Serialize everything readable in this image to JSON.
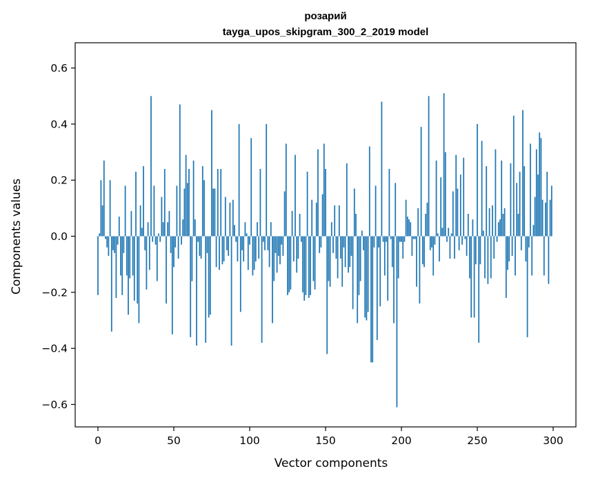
{
  "chart_data": {
    "type": "bar",
    "title_line1": "розарий",
    "title_line2": "tayga_upos_skipgram_300_2_2019 model",
    "xlabel": "Vector components",
    "ylabel": "Components values",
    "xlim": [
      -15,
      315
    ],
    "ylim": [
      -0.68,
      0.69
    ],
    "xticks": [
      0,
      50,
      100,
      150,
      200,
      250,
      300
    ],
    "yticks": [
      -0.6,
      -0.4,
      -0.2,
      0.0,
      0.2,
      0.4,
      0.6
    ],
    "xtick_labels": [
      "0",
      "50",
      "100",
      "150",
      "200",
      "250",
      "300"
    ],
    "ytick_labels": [
      "−0.6",
      "−0.4",
      "−0.2",
      "0.0",
      "0.2",
      "0.4",
      "0.6"
    ],
    "bar_color": "#1f77b4",
    "grid": false,
    "values": [
      -0.21,
      0.01,
      0.2,
      0.11,
      0.27,
      -0.01,
      -0.04,
      -0.07,
      0.2,
      -0.34,
      -0.05,
      -0.06,
      -0.22,
      -0.03,
      0.07,
      -0.14,
      -0.21,
      -0.06,
      0.18,
      -0.14,
      -0.28,
      -0.15,
      0.09,
      -0.14,
      -0.23,
      0.23,
      -0.24,
      -0.31,
      0.11,
      0.03,
      0.25,
      -0.05,
      -0.19,
      0.05,
      -0.12,
      0.5,
      -0.02,
      0.18,
      -0.03,
      -0.16,
      0.01,
      -0.02,
      0.14,
      0.05,
      0.24,
      -0.24,
      0.05,
      0.09,
      -0.06,
      -0.35,
      -0.11,
      -0.04,
      0.18,
      -0.08,
      0.47,
      -0.03,
      0.06,
      0.17,
      0.29,
      0.19,
      0.24,
      -0.36,
      -0.16,
      0.27,
      0.06,
      -0.39,
      -0.02,
      -0.07,
      -0.08,
      0.25,
      0.2,
      -0.38,
      -0.06,
      -0.29,
      -0.28,
      0.45,
      0.17,
      0.17,
      -0.11,
      0.24,
      -0.12,
      0.24,
      -0.1,
      -0.09,
      0.14,
      -0.05,
      -0.07,
      0.12,
      -0.39,
      0.13,
      0.04,
      -0.02,
      -0.09,
      0.4,
      -0.27,
      -0.05,
      -0.09,
      0.05,
      0.01,
      -0.12,
      -0.03,
      0.35,
      -0.14,
      -0.12,
      -0.09,
      0.05,
      -0.08,
      0.24,
      -0.38,
      -0.02,
      -0.05,
      0.4,
      -0.05,
      -0.11,
      0.05,
      -0.31,
      -0.16,
      -0.06,
      -0.13,
      -0.07,
      -0.1,
      -0.03,
      -0.07,
      0.16,
      0.33,
      -0.21,
      -0.2,
      -0.19,
      0.09,
      -0.09,
      0.29,
      -0.13,
      -0.08,
      0.08,
      -0.02,
      -0.2,
      -0.23,
      -0.21,
      0.23,
      -0.22,
      -0.21,
      0.13,
      -0.16,
      -0.19,
      0.12,
      0.31,
      -0.06,
      -0.04,
      0.15,
      0.33,
      0.24,
      -0.42,
      -0.16,
      -0.18,
      0.05,
      -0.06,
      0.11,
      -0.08,
      -0.15,
      0.11,
      -0.08,
      -0.18,
      -0.04,
      -0.11,
      0.26,
      -0.13,
      -0.11,
      -0.07,
      -0.26,
      0.17,
      0.08,
      -0.31,
      -0.21,
      -0.16,
      0.02,
      -0.05,
      -0.29,
      -0.3,
      -0.27,
      0.32,
      -0.45,
      -0.45,
      -0.04,
      0.18,
      -0.37,
      -0.04,
      -0.25,
      0.48,
      -0.02,
      -0.14,
      -0.02,
      -0.23,
      0.24,
      -0.01,
      -0.11,
      -0.31,
      0.19,
      -0.61,
      -0.15,
      -0.02,
      -0.02,
      -0.08,
      -0.02,
      0.13,
      0.07,
      0.06,
      0.05,
      -0.07,
      -0.01,
      -0.01,
      -0.18,
      0.1,
      -0.24,
      0.39,
      -0.1,
      -0.11,
      0.08,
      0.12,
      0.5,
      -0.05,
      -0.04,
      -0.14,
      -0.03,
      0.27,
      0.01,
      -0.09,
      0.21,
      0.03,
      0.51,
      0.3,
      -0.02,
      0.03,
      -0.08,
      0.01,
      0.16,
      -0.08,
      0.29,
      0.17,
      -0.05,
      0.22,
      -0.03,
      0.28,
      -0.01,
      -0.07,
      0.08,
      -0.15,
      -0.29,
      0.06,
      -0.29,
      -0.1,
      0.4,
      -0.38,
      -0.1,
      0.34,
      0.02,
      -0.15,
      0.25,
      -0.17,
      0.1,
      -0.15,
      0.11,
      -0.08,
      0.31,
      -0.02,
      0.05,
      0.06,
      0.27,
      0.08,
      0.1,
      -0.22,
      -0.12,
      -0.09,
      0.26,
      -0.07,
      0.43,
      -0.14,
      0.19,
      0.08,
      0.23,
      -0.05,
      0.45,
      0.25,
      -0.09,
      -0.36,
      -0.04,
      0.33,
      -0.14,
      0.04,
      0.14,
      0.31,
      0.22,
      0.37,
      0.35,
      0.13,
      -0.14,
      0.12,
      0.23,
      -0.17,
      0.13,
      0.18
    ]
  }
}
